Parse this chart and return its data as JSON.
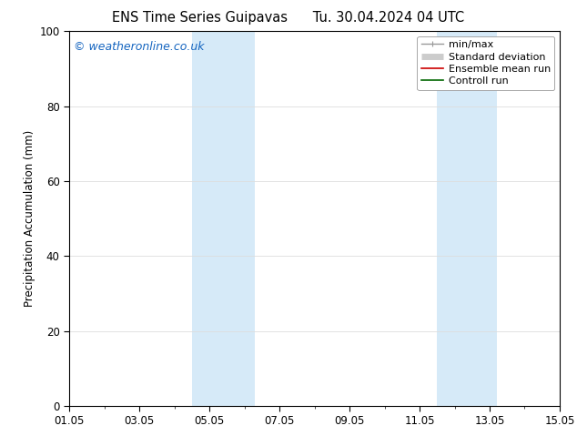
{
  "title": "ENS Time Series Guipavas      Tu. 30.04.2024 04 UTC",
  "ylabel": "Precipitation Accumulation (mm)",
  "ylim": [
    0,
    100
  ],
  "yticks": [
    0,
    20,
    40,
    60,
    80,
    100
  ],
  "x_start_num": 0,
  "x_end_num": 14,
  "xtick_positions": [
    0,
    2,
    4,
    6,
    8,
    10,
    12,
    14
  ],
  "xtick_labels": [
    "01.05",
    "03.05",
    "05.05",
    "07.05",
    "09.05",
    "11.05",
    "13.05",
    "15.05"
  ],
  "shaded_bands": [
    {
      "x_start": 3.5,
      "x_end": 5.3
    },
    {
      "x_start": 10.5,
      "x_end": 12.2
    }
  ],
  "shade_color": "#d6eaf8",
  "watermark": "© weatheronline.co.uk",
  "watermark_color": "#1565c0",
  "legend_entries": [
    {
      "label": "min/max",
      "color": "#999999",
      "lw": 1.0,
      "type": "minmax"
    },
    {
      "label": "Standard deviation",
      "color": "#cccccc",
      "lw": 5,
      "type": "bar"
    },
    {
      "label": "Ensemble mean run",
      "color": "#cc0000",
      "lw": 1.2,
      "type": "line"
    },
    {
      "label": "Controll run",
      "color": "#006600",
      "lw": 1.2,
      "type": "line"
    }
  ],
  "background_color": "#ffffff",
  "grid_color": "#dddddd",
  "title_fontsize": 10.5,
  "tick_fontsize": 8.5,
  "label_fontsize": 8.5,
  "legend_fontsize": 8,
  "watermark_fontsize": 9
}
